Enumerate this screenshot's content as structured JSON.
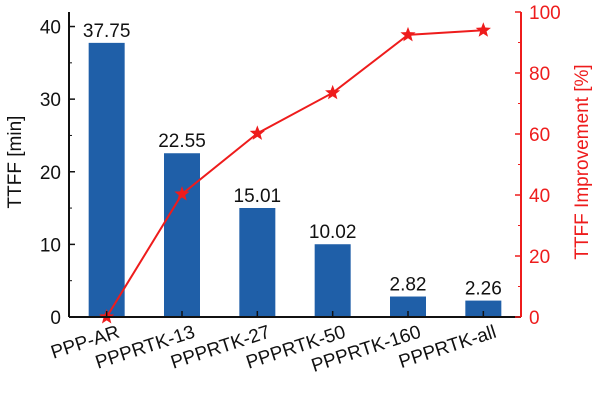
{
  "chart_data": {
    "type": "bar",
    "categories": [
      "PPP-AR",
      "PPPRTK-13",
      "PPPRTK-27",
      "PPPRTK-50",
      "PPPRTK-160",
      "PPPRTK-all"
    ],
    "series": [
      {
        "values": [
          37.75,
          22.55,
          15.01,
          10.02,
          2.82,
          2.26
        ],
        "value_labels": [
          "37.75",
          "22.55",
          "15.01",
          "10.02",
          "2.82",
          "2.26"
        ],
        "color": "#1f5fa8",
        "axis": "left"
      },
      {
        "values": [
          0,
          40.3,
          60.2,
          73.5,
          92.5,
          94.0
        ],
        "color": "#ee1c1c",
        "marker": "star",
        "axis": "right"
      }
    ],
    "ylabel": "TTFF [min]",
    "y2label": "TTFF Improvement [%]",
    "ylim": [
      0,
      42
    ],
    "y2lim": [
      0,
      100
    ],
    "yticks": [
      "0",
      "10",
      "20",
      "30",
      "40"
    ],
    "y2ticks": [
      "0",
      "20",
      "40",
      "60",
      "80",
      "100"
    ],
    "ytick_values": [
      0,
      10,
      20,
      30,
      40
    ],
    "y2tick_values": [
      0,
      20,
      40,
      60,
      80,
      100
    ],
    "grid": false,
    "legend": "none"
  }
}
